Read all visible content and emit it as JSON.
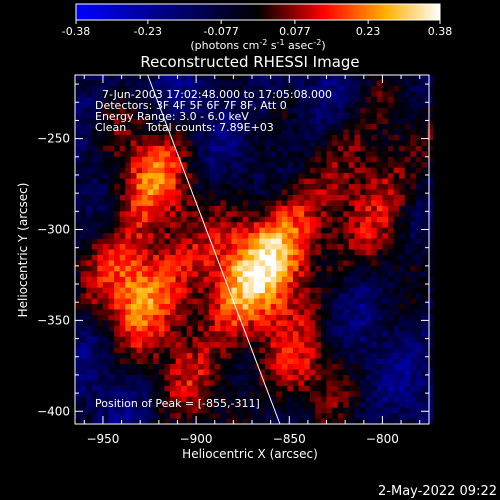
{
  "chart_data": {
    "type": "heatmap",
    "title": "Reconstructed RHESSI Image",
    "colorbar": {
      "min": -0.38,
      "max": 0.38,
      "tick_labels": [
        "-0.38",
        "-0.23",
        "-0.077",
        "0.077",
        "0.23",
        "0.38"
      ],
      "tick_values": [
        -0.38,
        -0.23,
        -0.077,
        0.077,
        0.23,
        0.38
      ],
      "unit_parts": [
        "(photons cm",
        "-2",
        " s",
        "-1",
        " asec",
        "-2",
        ")"
      ],
      "colors": [
        "#0000ff",
        "#000000",
        "#ff0000",
        "#ffff00",
        "#ffffff"
      ]
    },
    "annotations": {
      "time_range": "7-Jun-2003 17:02:48.000 to 17:05:08.000",
      "detectors": "Detectors: 3F 4F 5F 6F 7F 8F, Att 0",
      "energy_range": "Energy Range: 3.0 - 6.0 keV",
      "clean_label": "Clean",
      "total_counts": "Total counts: 7.89E+03",
      "peak": "Position of Peak = [-855,-311]"
    },
    "xlabel": "Heliocentric X (arcsec)",
    "ylabel": "Heliocentric Y (arcsec)",
    "xlim": [
      -965,
      -775
    ],
    "ylim": [
      -407,
      -215
    ],
    "xticks": [
      -950,
      -900,
      -850,
      -800
    ],
    "xtick_labels": [
      "−950",
      "−900",
      "−850",
      "−800"
    ],
    "yticks": [
      -250,
      -300,
      -350,
      -400
    ],
    "ytick_labels": [
      "−250",
      "−300",
      "−350",
      "−400"
    ],
    "limb_line": [
      [
        -926,
        -215
      ],
      [
        -855,
        -407
      ]
    ],
    "sources": [
      {
        "x": -930,
        "y": -330,
        "level": 0.34
      },
      {
        "x": -855,
        "y": -310,
        "level": 0.37
      },
      {
        "x": -925,
        "y": -272,
        "level": 0.26
      },
      {
        "x": -880,
        "y": -335,
        "level": 0.22
      },
      {
        "x": -845,
        "y": -380,
        "level": 0.18
      },
      {
        "x": -805,
        "y": -255,
        "level": 0.16
      },
      {
        "x": -800,
        "y": -290,
        "level": 0.14
      },
      {
        "x": -900,
        "y": -380,
        "level": 0.15
      }
    ],
    "grid": false,
    "legend": "none",
    "footer_date": "2-May-2022 09:22"
  }
}
